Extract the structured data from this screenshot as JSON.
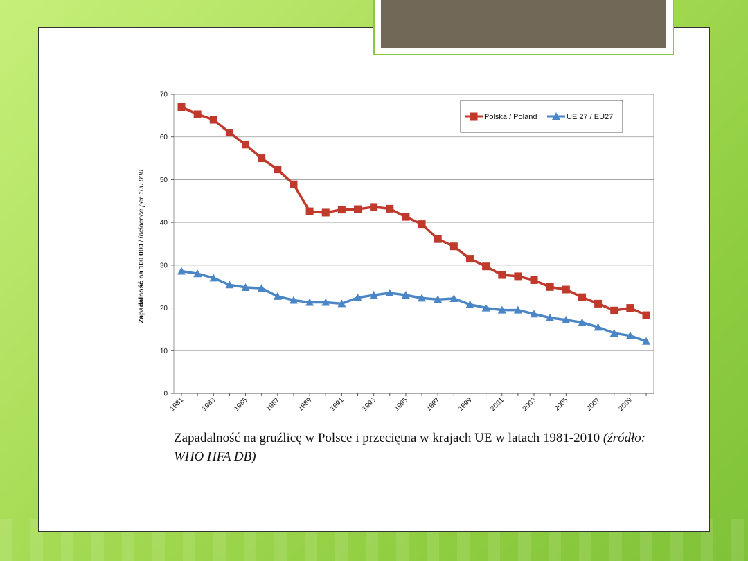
{
  "slide": {
    "caption_main": "Zapadalność na gruźlicę w Polsce i przeciętna w krajach UE w latach 1981-2010 ",
    "caption_source": "(źródło: WHO HFA DB)"
  },
  "colors": {
    "poland": "#c0392b",
    "eu": "#4a86c5"
  },
  "chart_data": {
    "type": "line",
    "ylabel_pl": "Zapadalność na 100 000",
    "ylabel_en": "incidence per 100 000",
    "ylabel_separator": "  /  ",
    "ylim": [
      0,
      70
    ],
    "yticks": [
      0,
      10,
      20,
      30,
      40,
      50,
      60,
      70
    ],
    "x": [
      1981,
      1982,
      1983,
      1984,
      1985,
      1986,
      1987,
      1988,
      1989,
      1990,
      1991,
      1992,
      1993,
      1994,
      1995,
      1996,
      1997,
      1998,
      1999,
      2000,
      2001,
      2002,
      2003,
      2004,
      2005,
      2006,
      2007,
      2008,
      2009,
      2010
    ],
    "xtick_labels": [
      "1981",
      "1983",
      "1985",
      "1987",
      "1989",
      "1991",
      "1993",
      "1995",
      "1997",
      "1999",
      "2001",
      "2003",
      "2005",
      "2007",
      "2009"
    ],
    "grid": true,
    "legend_position": "top-right",
    "series": [
      {
        "name": "Polska / Poland",
        "color": "#c0392b",
        "marker": "square",
        "values": [
          67.0,
          65.3,
          64.0,
          61.0,
          58.2,
          55.0,
          52.4,
          48.9,
          42.6,
          42.3,
          43.0,
          43.1,
          43.6,
          43.2,
          41.3,
          39.6,
          36.1,
          34.4,
          31.5,
          29.7,
          27.7,
          27.4,
          26.5,
          24.9,
          24.3,
          22.5,
          21.0,
          19.4,
          20.0,
          18.3
        ]
      },
      {
        "name": "UE 27 / EU27",
        "color": "#4a86c5",
        "marker": "triangle",
        "values": [
          28.6,
          28.0,
          27.0,
          25.4,
          24.8,
          24.6,
          22.7,
          21.8,
          21.3,
          21.3,
          21.0,
          22.4,
          23.0,
          23.5,
          23.0,
          22.3,
          22.0,
          22.2,
          20.8,
          20.0,
          19.5,
          19.5,
          18.6,
          17.7,
          17.2,
          16.6,
          15.5,
          14.1,
          13.5,
          12.2
        ]
      }
    ]
  }
}
